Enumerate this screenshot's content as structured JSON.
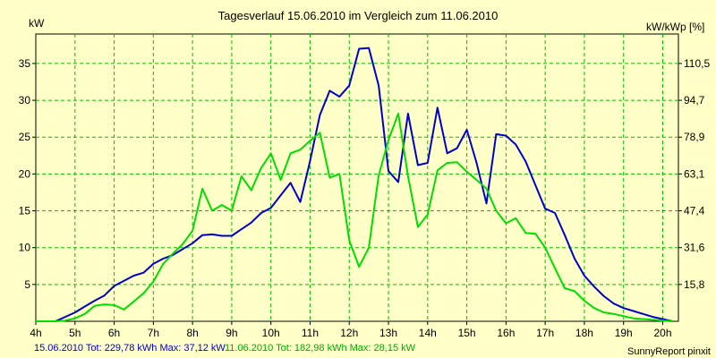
{
  "chart_data": {
    "type": "line",
    "title": "Tagesverlauf 15.06.2010 im Vergleich zum 11.06.2010",
    "ylabel": "kW",
    "ylabel_right": "kW/kWp [%]",
    "xlim": [
      4,
      20.4
    ],
    "ylim": [
      0,
      39
    ],
    "x_ticks": [
      4,
      5,
      6,
      7,
      8,
      9,
      10,
      11,
      12,
      13,
      14,
      15,
      16,
      17,
      18,
      19,
      20
    ],
    "x_tick_labels": [
      "4h",
      "5h",
      "6h",
      "7h",
      "8h",
      "9h",
      "10h",
      "11h",
      "12h",
      "13h",
      "14h",
      "15h",
      "16h",
      "17h",
      "18h",
      "19h",
      "20h"
    ],
    "y_ticks": [
      5,
      10,
      15,
      20,
      25,
      30,
      35
    ],
    "y_tick_labels": [
      "5",
      "10",
      "15",
      "20",
      "25",
      "30",
      "35"
    ],
    "y2_ticks": [
      5,
      10,
      15,
      20,
      25,
      30,
      35
    ],
    "y2_tick_labels": [
      "15,8",
      "31,6",
      "47,4",
      "63,1",
      "78,9",
      "94,7",
      "110,5"
    ],
    "grid": true,
    "series": [
      {
        "name": "15.06.2010",
        "color": "#0000CC",
        "x": [
          4,
          4.5,
          4.75,
          5,
          5.25,
          5.5,
          5.75,
          6,
          6.25,
          6.5,
          6.75,
          7,
          7.25,
          7.5,
          7.75,
          8,
          8.25,
          8.5,
          8.75,
          9,
          9.25,
          9.5,
          9.75,
          10,
          10.25,
          10.5,
          10.75,
          11,
          11.25,
          11.5,
          11.75,
          12,
          12.25,
          12.5,
          12.75,
          13,
          13.25,
          13.5,
          13.75,
          14,
          14.25,
          14.5,
          14.75,
          15,
          15.25,
          15.5,
          15.75,
          16,
          16.25,
          16.5,
          16.75,
          17,
          17.25,
          17.5,
          17.75,
          18,
          18.25,
          18.5,
          18.75,
          19,
          19.25,
          19.5,
          19.75,
          20,
          20.25
        ],
        "values": [
          0,
          0,
          0.6,
          1.2,
          2.0,
          2.8,
          3.5,
          4.8,
          5.5,
          6.2,
          6.6,
          7.8,
          8.5,
          9.0,
          9.8,
          10.6,
          11.7,
          11.8,
          11.6,
          11.6,
          12.5,
          13.4,
          14.7,
          15.4,
          17.1,
          18.8,
          16.2,
          21.8,
          28.0,
          31.3,
          30.5,
          32.0,
          37.0,
          37.1,
          32.0,
          20.4,
          18.9,
          28.2,
          21.2,
          21.5,
          29.0,
          22.8,
          23.5,
          26.0,
          21.5,
          16.0,
          25.4,
          25.2,
          24.0,
          21.7,
          18.5,
          15.3,
          14.7,
          11.7,
          8.5,
          6.2,
          4.7,
          3.4,
          2.4,
          1.8,
          1.4,
          1.0,
          0.6,
          0.3,
          0
        ]
      },
      {
        "name": "11.06.2010",
        "color": "#00DD00",
        "x": [
          4,
          4.5,
          4.75,
          5,
          5.25,
          5.5,
          5.75,
          6,
          6.25,
          6.5,
          6.75,
          7,
          7.25,
          7.5,
          7.75,
          8,
          8.25,
          8.5,
          8.75,
          9,
          9.25,
          9.5,
          9.75,
          10,
          10.25,
          10.5,
          10.75,
          11,
          11.25,
          11.5,
          11.75,
          12,
          12.25,
          12.5,
          12.75,
          13,
          13.25,
          13.5,
          13.75,
          14,
          14.25,
          14.5,
          14.75,
          15,
          15.25,
          15.5,
          15.75,
          16,
          16.25,
          16.5,
          16.75,
          17,
          17.25,
          17.5,
          17.75,
          18,
          18.25,
          18.5,
          18.75,
          19,
          19.25,
          19.5,
          19.75,
          20,
          20.25
        ],
        "values": [
          0,
          0,
          0.1,
          0.4,
          1.0,
          2.1,
          2.3,
          2.2,
          1.6,
          2.7,
          3.8,
          5.4,
          7.8,
          9.2,
          10.5,
          12.3,
          18.0,
          15.0,
          15.8,
          15.0,
          19.7,
          17.8,
          20.8,
          22.8,
          19.2,
          22.8,
          23.3,
          24.5,
          25.6,
          19.5,
          20.0,
          11.0,
          7.4,
          10.0,
          19.8,
          24.6,
          28.2,
          19.7,
          12.8,
          14.5,
          20.5,
          21.5,
          21.6,
          20.3,
          19.2,
          18.0,
          15.0,
          13.3,
          14.0,
          12.0,
          11.9,
          10.0,
          7.2,
          4.5,
          4.1,
          2.8,
          1.8,
          1.2,
          1.0,
          0.7,
          0.4,
          0.3,
          0.2,
          0.1,
          0
        ]
      }
    ],
    "legend": {
      "entries": [
        {
          "color": "#0000CC",
          "text": "15.06.2010 Tot: 229,78 kWh Max: 37,12 kW"
        },
        {
          "color": "#00DD00",
          "text": "11.06.2010 Tot: 182,98 kWh Max: 28,15 kW"
        }
      ]
    },
    "footer": "SunnyReport pinxit"
  }
}
